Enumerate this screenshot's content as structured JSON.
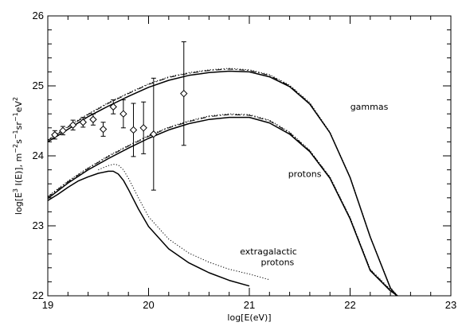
{
  "chart_data": {
    "type": "line",
    "xlabel": "log[E(eV)]",
    "ylabel_parts": {
      "a": "log[E",
      "a_sup": "3",
      "b": " I(E)], m",
      "b_sup": "−2",
      "c": "s",
      "c_sup": "−1",
      "d": "sr",
      "d_sup": "−1",
      "e": "eV",
      "e_sup": "2"
    },
    "xlim": [
      19,
      23
    ],
    "ylim": [
      22,
      26
    ],
    "xticks": [
      19,
      20,
      21,
      22,
      23
    ],
    "xtick_labels": [
      "19",
      "20",
      "21",
      "22",
      "23"
    ],
    "yticks": [
      22,
      23,
      24,
      25,
      26
    ],
    "ytick_labels": [
      "22",
      "23",
      "24",
      "25",
      "26"
    ],
    "annotations": [
      {
        "text": "gammas",
        "x": 22.19,
        "y": 24.66
      },
      {
        "text": "protons",
        "x": 21.55,
        "y": 23.7
      },
      {
        "text": "extragalactic",
        "x": 21.19,
        "y": 22.59
      },
      {
        "text": "protons",
        "x": 21.28,
        "y": 22.44
      }
    ],
    "series": [
      {
        "group": "gammas",
        "style": "solid",
        "x": [
          19.0,
          19.2,
          19.4,
          19.6,
          19.8,
          20.0,
          20.2,
          20.4,
          20.6,
          20.8,
          21.0,
          21.2,
          21.4,
          21.6,
          21.8,
          22.0,
          22.2,
          22.4,
          22.46
        ],
        "y": [
          24.2,
          24.38,
          24.56,
          24.71,
          24.85,
          24.98,
          25.08,
          25.15,
          25.19,
          25.21,
          25.2,
          25.13,
          24.99,
          24.74,
          24.33,
          23.69,
          22.84,
          22.11,
          22.0
        ]
      },
      {
        "group": "gammas",
        "style": "dashed",
        "x": [
          19.0,
          19.2,
          19.4,
          19.6,
          19.8,
          20.0,
          20.2,
          20.4,
          20.6,
          20.8,
          21.0,
          21.2,
          21.4,
          21.6,
          21.8,
          22.0,
          22.2,
          22.4,
          22.47
        ],
        "y": [
          24.22,
          24.41,
          24.59,
          24.75,
          24.89,
          25.02,
          25.12,
          25.18,
          25.22,
          25.24,
          25.22,
          25.15,
          25.0,
          24.75,
          24.33,
          23.69,
          22.84,
          22.11,
          22.0
        ]
      },
      {
        "group": "gammas",
        "style": "dotted",
        "x": [
          19.0,
          19.2,
          19.4,
          19.6,
          19.8,
          20.0,
          20.2,
          20.4,
          20.6,
          20.8,
          21.0,
          21.2,
          21.4,
          21.6,
          21.8,
          22.0,
          22.2,
          22.4,
          22.47
        ],
        "y": [
          24.23,
          24.42,
          24.6,
          24.76,
          24.9,
          25.03,
          25.13,
          25.19,
          25.23,
          25.25,
          25.23,
          25.16,
          25.01,
          24.76,
          24.34,
          23.7,
          22.85,
          22.12,
          22.0
        ]
      },
      {
        "group": "protons",
        "style": "solid",
        "x": [
          19.0,
          19.2,
          19.4,
          19.6,
          19.8,
          20.0,
          20.2,
          20.4,
          20.6,
          20.8,
          21.0,
          21.2,
          21.4,
          21.6,
          21.8,
          22.0,
          22.2,
          22.4,
          22.47
        ],
        "y": [
          23.39,
          23.61,
          23.8,
          23.96,
          24.11,
          24.25,
          24.37,
          24.46,
          24.52,
          24.55,
          24.55,
          24.47,
          24.31,
          24.06,
          23.68,
          23.1,
          22.36,
          22.07,
          22.0
        ]
      },
      {
        "group": "protons",
        "style": "dashed",
        "x": [
          19.0,
          19.2,
          19.4,
          19.6,
          19.8,
          20.0,
          20.2,
          20.4,
          20.6,
          20.8,
          21.0,
          21.2,
          21.4,
          21.6,
          21.8,
          22.0,
          22.2,
          22.4,
          22.47
        ],
        "y": [
          23.41,
          23.63,
          23.82,
          23.99,
          24.14,
          24.28,
          24.4,
          24.49,
          24.56,
          24.59,
          24.58,
          24.5,
          24.33,
          24.07,
          23.69,
          23.11,
          22.37,
          22.08,
          22.0
        ]
      },
      {
        "group": "protons",
        "style": "dotted",
        "x": [
          19.0,
          19.2,
          19.4,
          19.6,
          19.8,
          20.0,
          20.2,
          20.4,
          20.6,
          20.8,
          21.0,
          21.2,
          21.4,
          21.6,
          21.8,
          22.0,
          22.2,
          22.4,
          22.47
        ],
        "y": [
          23.42,
          23.64,
          23.83,
          24.0,
          24.15,
          24.29,
          24.41,
          24.5,
          24.57,
          24.6,
          24.59,
          24.51,
          24.34,
          24.08,
          23.7,
          23.12,
          22.38,
          22.09,
          22.0
        ]
      },
      {
        "group": "extragalactic protons",
        "style": "solid",
        "x": [
          19.0,
          19.1,
          19.2,
          19.3,
          19.4,
          19.5,
          19.6,
          19.65,
          19.7,
          19.75,
          19.8,
          19.9,
          20.0,
          20.2,
          20.4,
          20.6,
          20.8,
          21.0
        ],
        "y": [
          23.36,
          23.45,
          23.55,
          23.64,
          23.7,
          23.75,
          23.78,
          23.78,
          23.74,
          23.65,
          23.52,
          23.24,
          22.99,
          22.67,
          22.47,
          22.33,
          22.22,
          22.14
        ]
      },
      {
        "group": "extragalactic protons",
        "style": "dotted",
        "x": [
          19.5,
          19.6,
          19.65,
          19.7,
          19.75,
          19.8,
          19.9,
          20.0,
          20.2,
          20.4,
          20.6,
          20.8,
          21.0,
          21.2
        ],
        "y": [
          23.8,
          23.86,
          23.88,
          23.87,
          23.8,
          23.68,
          23.4,
          23.13,
          22.81,
          22.61,
          22.48,
          22.38,
          22.31,
          22.23
        ]
      }
    ],
    "data_points": [
      {
        "x": 19.07,
        "y": 24.3,
        "err": 0.06
      },
      {
        "x": 19.15,
        "y": 24.36,
        "err": 0.06
      },
      {
        "x": 19.25,
        "y": 24.44,
        "err": 0.07
      },
      {
        "x": 19.35,
        "y": 24.48,
        "err": 0.07
      },
      {
        "x": 19.45,
        "y": 24.52,
        "err": 0.08
      },
      {
        "x": 19.55,
        "y": 24.38,
        "err": 0.1
      },
      {
        "x": 19.65,
        "y": 24.7,
        "err": 0.1
      },
      {
        "x": 19.75,
        "y": 24.6,
        "err": 0.2
      },
      {
        "x": 19.85,
        "y": 24.37,
        "err": 0.38
      },
      {
        "x": 19.95,
        "y": 24.4,
        "err": 0.37
      },
      {
        "x": 20.05,
        "y": 24.31,
        "err": 0.8
      },
      {
        "x": 20.35,
        "y": 24.89,
        "err": 0.74
      }
    ]
  }
}
